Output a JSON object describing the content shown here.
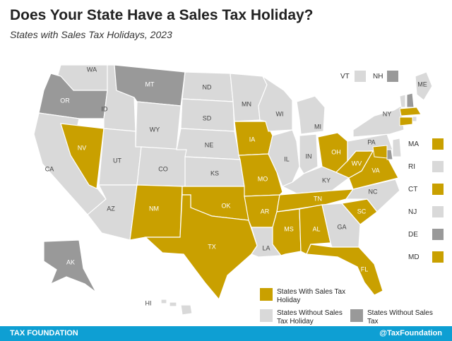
{
  "title": "Does Your State Have a Sales Tax Holiday?",
  "subtitle": "States with Sales Tax Holidays, 2023",
  "colors": {
    "holiday": "#c9a000",
    "no_holiday": "#d9d9d9",
    "no_sales_tax": "#999999"
  },
  "map": {
    "states": [
      {
        "abbr": "WA",
        "category": "no_holiday"
      },
      {
        "abbr": "OR",
        "category": "no_sales_tax"
      },
      {
        "abbr": "CA",
        "category": "no_holiday"
      },
      {
        "abbr": "NV",
        "category": "holiday"
      },
      {
        "abbr": "ID",
        "category": "no_holiday"
      },
      {
        "abbr": "MT",
        "category": "no_sales_tax"
      },
      {
        "abbr": "WY",
        "category": "no_holiday"
      },
      {
        "abbr": "UT",
        "category": "no_holiday"
      },
      {
        "abbr": "AZ",
        "category": "no_holiday"
      },
      {
        "abbr": "CO",
        "category": "no_holiday"
      },
      {
        "abbr": "NM",
        "category": "holiday"
      },
      {
        "abbr": "ND",
        "category": "no_holiday"
      },
      {
        "abbr": "SD",
        "category": "no_holiday"
      },
      {
        "abbr": "NE",
        "category": "no_holiday"
      },
      {
        "abbr": "KS",
        "category": "no_holiday"
      },
      {
        "abbr": "OK",
        "category": "holiday"
      },
      {
        "abbr": "TX",
        "category": "holiday"
      },
      {
        "abbr": "MN",
        "category": "no_holiday"
      },
      {
        "abbr": "IA",
        "category": "holiday"
      },
      {
        "abbr": "MO",
        "category": "holiday"
      },
      {
        "abbr": "AR",
        "category": "holiday"
      },
      {
        "abbr": "LA",
        "category": "no_holiday"
      },
      {
        "abbr": "WI",
        "category": "no_holiday"
      },
      {
        "abbr": "IL",
        "category": "no_holiday"
      },
      {
        "abbr": "MI",
        "category": "no_holiday"
      },
      {
        "abbr": "IN",
        "category": "no_holiday"
      },
      {
        "abbr": "OH",
        "category": "holiday"
      },
      {
        "abbr": "KY",
        "category": "no_holiday"
      },
      {
        "abbr": "TN",
        "category": "holiday"
      },
      {
        "abbr": "MS",
        "category": "holiday"
      },
      {
        "abbr": "AL",
        "category": "holiday"
      },
      {
        "abbr": "GA",
        "category": "no_holiday"
      },
      {
        "abbr": "FL",
        "category": "holiday"
      },
      {
        "abbr": "SC",
        "category": "holiday"
      },
      {
        "abbr": "NC",
        "category": "no_holiday"
      },
      {
        "abbr": "VA",
        "category": "holiday"
      },
      {
        "abbr": "WV",
        "category": "holiday"
      },
      {
        "abbr": "PA",
        "category": "no_holiday"
      },
      {
        "abbr": "NY",
        "category": "no_holiday"
      },
      {
        "abbr": "ME",
        "category": "no_holiday"
      },
      {
        "abbr": "AK",
        "category": "no_sales_tax"
      },
      {
        "abbr": "HI",
        "category": "no_holiday"
      }
    ],
    "side_states": [
      {
        "abbr": "VT",
        "category": "no_holiday"
      },
      {
        "abbr": "NH",
        "category": "no_sales_tax"
      },
      {
        "abbr": "MA",
        "category": "holiday"
      },
      {
        "abbr": "RI",
        "category": "no_holiday"
      },
      {
        "abbr": "CT",
        "category": "holiday"
      },
      {
        "abbr": "NJ",
        "category": "no_holiday"
      },
      {
        "abbr": "DE",
        "category": "no_sales_tax"
      },
      {
        "abbr": "MD",
        "category": "holiday"
      }
    ]
  },
  "legend": [
    {
      "label": "States With Sales Tax Holiday",
      "category": "holiday"
    },
    {
      "label": "States Without Sales Tax Holiday",
      "category": "no_holiday"
    },
    {
      "label": "States Without Sales Tax",
      "category": "no_sales_tax"
    }
  ],
  "footer": {
    "left": "TAX FOUNDATION",
    "right": "@TaxFoundation"
  }
}
